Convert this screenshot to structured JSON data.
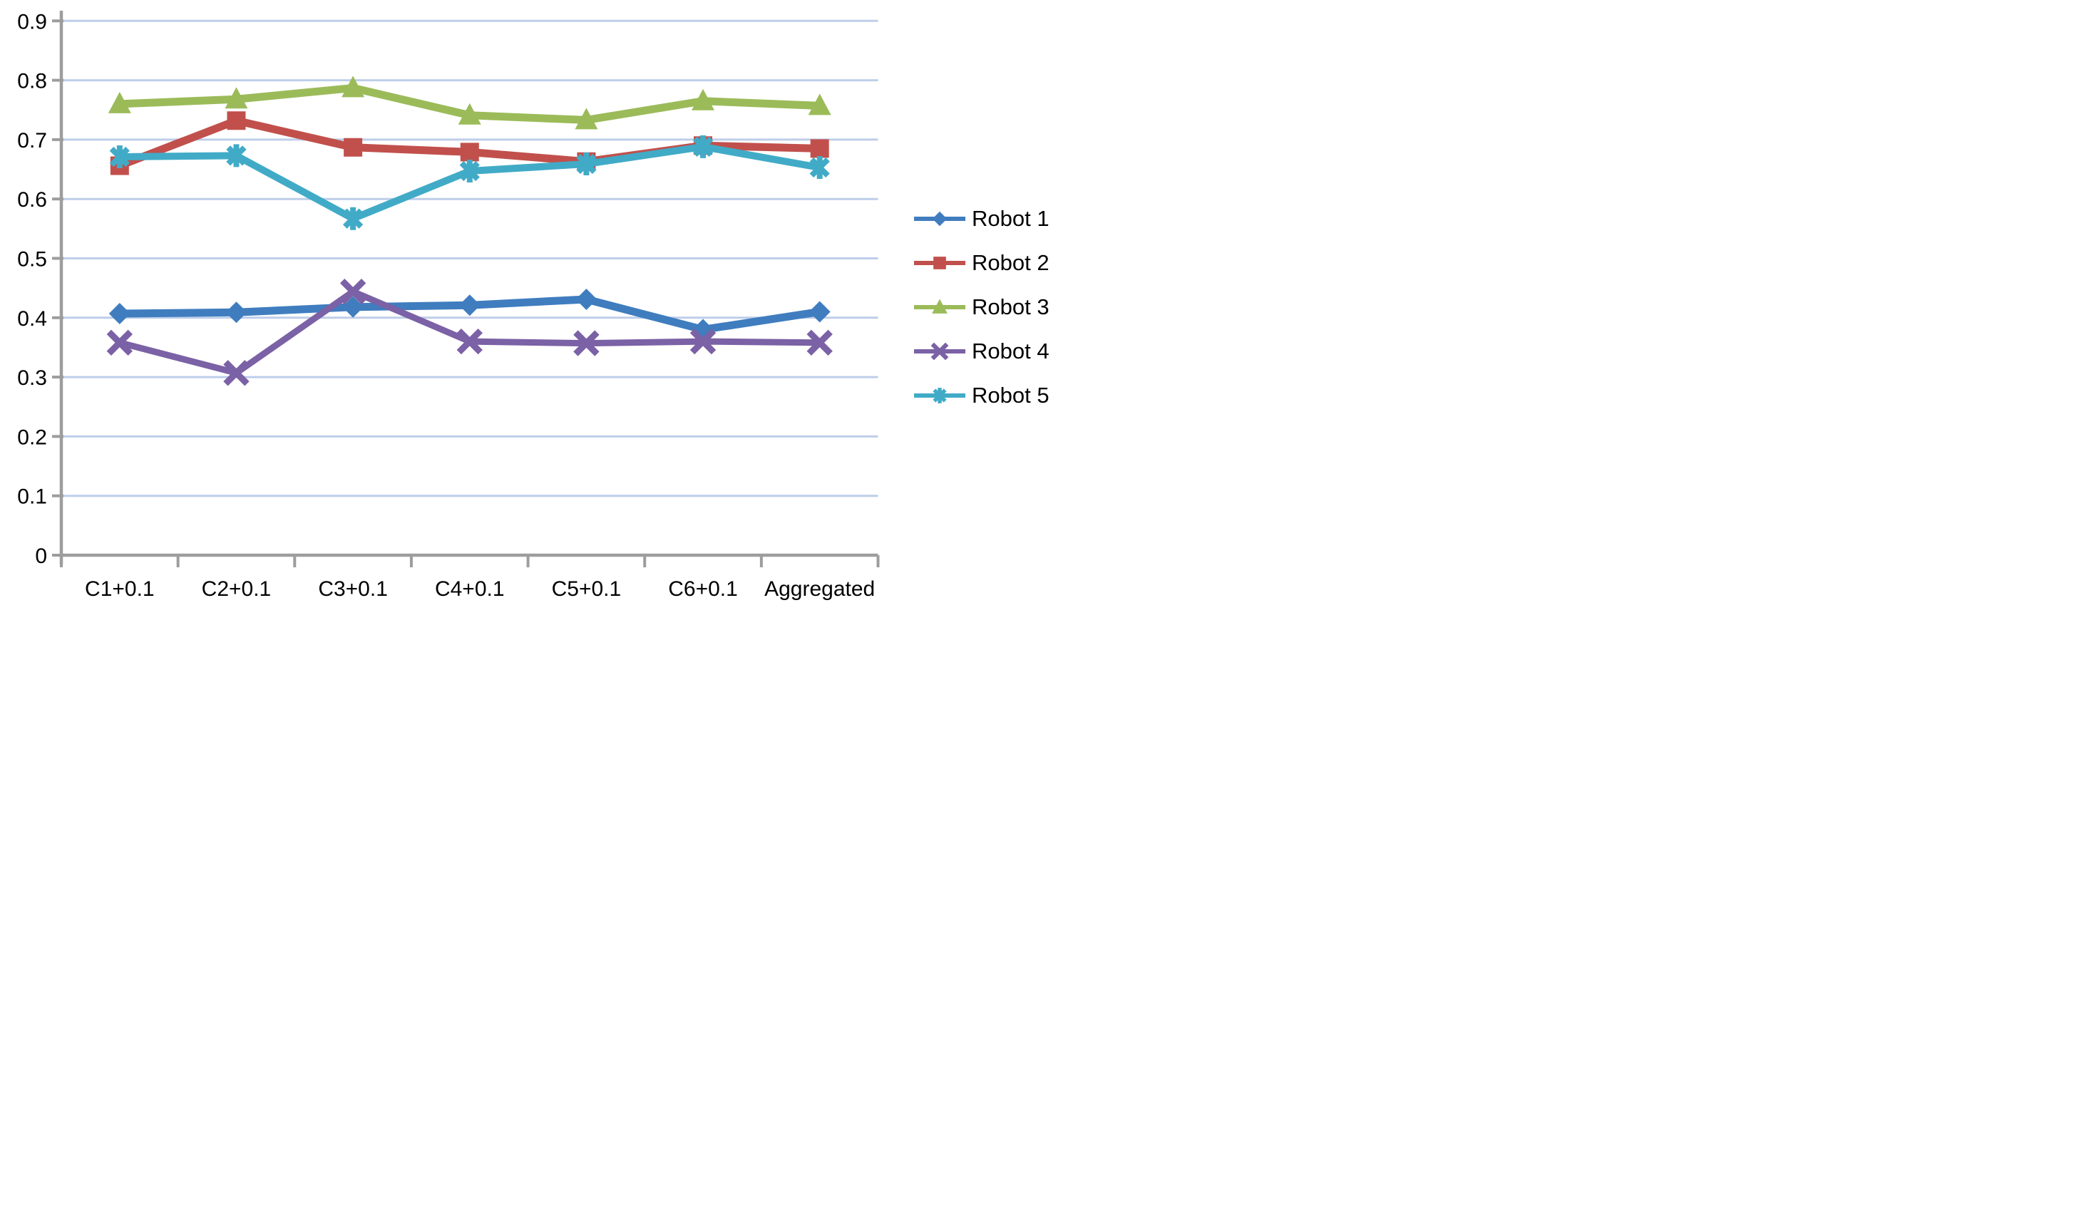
{
  "chart_data": {
    "type": "line",
    "title": "",
    "categories": [
      "C1+0.1",
      "C2+0.1",
      "C3+0.1",
      "C4+0.1",
      "C5+0.1",
      "C6+0.1",
      "Aggregated"
    ],
    "series": [
      {
        "name": "Robot 1",
        "color": "#3F7DBF",
        "marker": "diamond",
        "values": [
          0.407,
          0.409,
          0.418,
          0.421,
          0.431,
          0.38,
          0.41
        ]
      },
      {
        "name": "Robot 2",
        "color": "#C1504C",
        "marker": "square",
        "values": [
          0.656,
          0.732,
          0.687,
          0.679,
          0.663,
          0.69,
          0.685
        ]
      },
      {
        "name": "Robot 3",
        "color": "#9BBB59",
        "marker": "triangle",
        "values": [
          0.76,
          0.768,
          0.787,
          0.741,
          0.733,
          0.765,
          0.757
        ]
      },
      {
        "name": "Robot 4",
        "color": "#7B61A5",
        "marker": "x",
        "values": [
          0.358,
          0.307,
          0.444,
          0.36,
          0.357,
          0.36,
          0.358
        ]
      },
      {
        "name": "Robot 5",
        "color": "#41ABC7",
        "marker": "asterisk",
        "values": [
          0.671,
          0.673,
          0.567,
          0.647,
          0.659,
          0.688,
          0.653
        ]
      }
    ],
    "y_ticks": [
      "0",
      "0.1",
      "0.2",
      "0.3",
      "0.4",
      "0.5",
      "0.6",
      "0.7",
      "0.8",
      "0.9"
    ],
    "ylim": [
      0,
      0.9
    ],
    "grid": true,
    "legend_position": "right",
    "gridline_color": "#BECEE9",
    "axis_color": "#9D9D9D",
    "text_color": "#000000",
    "background": "#FFFFFF"
  }
}
